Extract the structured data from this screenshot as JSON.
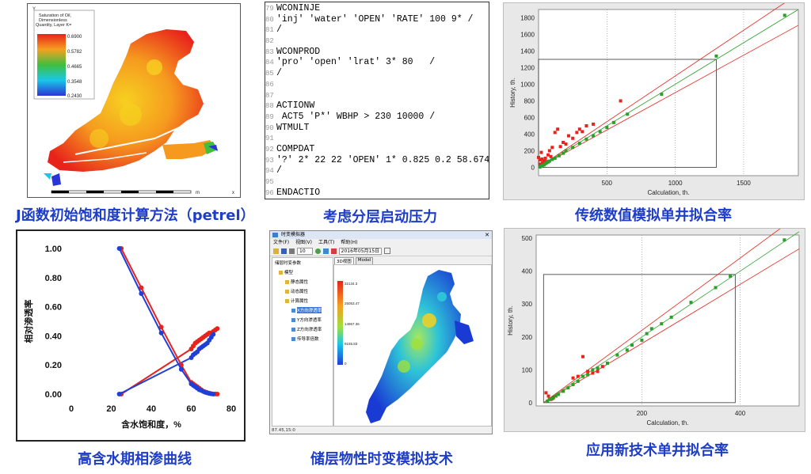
{
  "captions": {
    "p1": "J函数初始饱和度计算方法（petrel）",
    "p2": "考虑分层启动压力",
    "p3": "传统数值模拟单井拟合率",
    "p4": "高含水期相渗曲线",
    "p5": "储层物性时变模拟技术",
    "p6": "应用新技术单井拟合率"
  },
  "map1": {
    "legend_title_1": "Saturation of Oil,",
    "legend_title_2": "Dimensionless",
    "legend_title_3": "Quantity, Layer K=",
    "legend_values": [
      "0.6900",
      "0.5782",
      "0.4665",
      "0.3548",
      "0.2430"
    ],
    "scale_unit": "m",
    "axis_x": "x",
    "axis_y": "Y",
    "colors": {
      "high": "#e8231b",
      "mid": "#f59a1f",
      "low": "#2a35d6"
    }
  },
  "code": {
    "lines": [
      {
        "n": "79",
        "t": "WCONINJE"
      },
      {
        "n": "80",
        "t": "'inj' 'water' 'OPEN' 'RATE' 100 9* /"
      },
      {
        "n": "81",
        "t": "/"
      },
      {
        "n": "82",
        "t": ""
      },
      {
        "n": "83",
        "t": "WCONPROD"
      },
      {
        "n": "84",
        "t": "'pro' 'open' 'lrat' 3* 80   /"
      },
      {
        "n": "85",
        "t": "/"
      },
      {
        "n": "86",
        "t": ""
      },
      {
        "n": "87",
        "t": ""
      },
      {
        "n": "88",
        "t": "ACTIONW"
      },
      {
        "n": "89",
        "t": " ACT5 'P*' WBHP > 230 10000 /"
      },
      {
        "n": "90",
        "t": "WTMULT"
      },
      {
        "n": "91",
        "t": ""
      },
      {
        "n": "92",
        "t": "COMPDAT"
      },
      {
        "n": "93",
        "t": "'?' 2* 22 22 'OPEN' 1* 0.825 0.2 58.674 2* 'Z' 4.514 /"
      },
      {
        "n": "94",
        "t": "/"
      },
      {
        "n": "95",
        "t": ""
      },
      {
        "n": "96",
        "t": "ENDACTIO"
      }
    ]
  },
  "app": {
    "title": "时变模拟器",
    "menu": [
      "文件(F)",
      "视图(V)",
      "工具(T)",
      "帮助(H)"
    ],
    "zoom": "10",
    "date": "2016年05月15日",
    "tabs": [
      "3D视图",
      "Model"
    ],
    "tree_root": "储层时变参数",
    "tree_items": [
      "模型",
      "静态属性",
      "动态属性",
      "计算属性",
      "X方向渗透率",
      "Y方向渗透率",
      "Z方向渗透率",
      "传导率倍数"
    ],
    "legend_values": [
      "32134.3",
      "25053.47",
      "14967.36",
      "9155.83",
      "0"
    ],
    "status": "87.45,15:0"
  },
  "chart_data": [
    {
      "type": "line",
      "title": "",
      "xlabel": "含水饱和度，%",
      "ylabel": "相对渗透率",
      "xlim": [
        0,
        80
      ],
      "ylim": [
        0,
        1
      ],
      "xticks": [
        "0",
        "20",
        "40",
        "60",
        "80"
      ],
      "yticks": [
        "0.00",
        "0.20",
        "0.40",
        "0.60",
        "0.80",
        "1.00"
      ],
      "series": [
        {
          "color": "#e8231b",
          "kind": "krw",
          "x": [
            25,
            60,
            61,
            62,
            63,
            64,
            65,
            66,
            67,
            68,
            69,
            70,
            71,
            72,
            73
          ],
          "y": [
            0,
            0.31,
            0.33,
            0.35,
            0.36,
            0.37,
            0.38,
            0.39,
            0.4,
            0.41,
            0.42,
            0.42,
            0.43,
            0.44,
            0.45
          ]
        },
        {
          "color": "#1f3fd8",
          "kind": "krw",
          "x": [
            24,
            60,
            61,
            62,
            63,
            64,
            65,
            66,
            67,
            68,
            69,
            70,
            71
          ],
          "y": [
            0,
            0.25,
            0.27,
            0.28,
            0.29,
            0.31,
            0.32,
            0.33,
            0.34,
            0.35,
            0.37,
            0.39,
            0.41
          ]
        },
        {
          "color": "#e8231b",
          "kind": "kro",
          "x": [
            25,
            35,
            45,
            55,
            60,
            61,
            62,
            63,
            64,
            65,
            66,
            67,
            68,
            69,
            70,
            72,
            73
          ],
          "y": [
            1.0,
            0.73,
            0.46,
            0.2,
            0.08,
            0.07,
            0.06,
            0.05,
            0.04,
            0.03,
            0.02,
            0.015,
            0.01,
            0.006,
            0.003,
            0.001,
            0.0
          ]
        },
        {
          "color": "#1f3fd8",
          "kind": "kro",
          "x": [
            24,
            35,
            45,
            55,
            60,
            61,
            62,
            63,
            64,
            65,
            66,
            67,
            68,
            69,
            70,
            71
          ],
          "y": [
            1.0,
            0.69,
            0.42,
            0.17,
            0.07,
            0.06,
            0.05,
            0.04,
            0.03,
            0.025,
            0.018,
            0.012,
            0.008,
            0.004,
            0.002,
            0.0
          ]
        }
      ]
    },
    {
      "type": "scatter",
      "title": "",
      "xlabel": "Calculation, th.",
      "ylabel": "History, th.",
      "xlim": [
        0,
        1900
      ],
      "ylim": [
        -100,
        1900
      ],
      "xticks": [
        500,
        1000,
        1500
      ],
      "yticks": [
        0,
        200,
        400,
        600,
        800,
        1000,
        1200,
        1400,
        1600,
        1800
      ],
      "box": {
        "x": [
          0,
          1300
        ],
        "y": [
          0,
          1300
        ]
      },
      "series": [
        {
          "color": "#e8231b",
          "x": [
            0,
            10,
            20,
            30,
            15,
            25,
            40,
            50,
            60,
            70,
            80,
            90,
            100,
            120,
            140,
            160,
            180,
            200,
            220,
            250,
            280,
            300,
            320,
            350,
            400,
            600
          ],
          "y": [
            120,
            90,
            180,
            60,
            40,
            100,
            80,
            110,
            70,
            150,
            200,
            130,
            240,
            420,
            460,
            250,
            300,
            280,
            380,
            350,
            420,
            460,
            430,
            500,
            520,
            800
          ]
        },
        {
          "color": "#2aa02a",
          "x": [
            10,
            20,
            30,
            40,
            50,
            60,
            70,
            80,
            100,
            120,
            150,
            180,
            200,
            250,
            300,
            350,
            400,
            450,
            500,
            550,
            650,
            900,
            1300,
            1800
          ],
          "y": [
            5,
            15,
            25,
            30,
            45,
            55,
            65,
            75,
            95,
            110,
            140,
            170,
            200,
            240,
            290,
            340,
            380,
            430,
            480,
            540,
            640,
            880,
            1340,
            1830
          ]
        }
      ]
    },
    {
      "type": "scatter",
      "title": "",
      "xlabel": "Calculation, th.",
      "ylabel": "History, th.",
      "xlim": [
        -15,
        520
      ],
      "ylim": [
        -10,
        510
      ],
      "xticks": [
        200,
        400
      ],
      "yticks": [
        0,
        100,
        200,
        300,
        400,
        500
      ],
      "box": {
        "x": [
          0,
          390
        ],
        "y": [
          0,
          390
        ]
      },
      "series": [
        {
          "color": "#e8231b",
          "x": [
            5,
            10,
            15,
            20,
            40,
            60,
            70,
            80,
            90,
            100,
            110,
            120
          ],
          "y": [
            30,
            20,
            10,
            15,
            35,
            75,
            80,
            140,
            95,
            90,
            95,
            110
          ]
        },
        {
          "color": "#2aa02a",
          "x": [
            8,
            12,
            18,
            25,
            30,
            40,
            50,
            60,
            70,
            80,
            90,
            100,
            110,
            130,
            150,
            170,
            180,
            200,
            210,
            220,
            240,
            260,
            300,
            350,
            380,
            490
          ],
          "y": [
            5,
            10,
            12,
            20,
            25,
            35,
            45,
            55,
            65,
            80,
            85,
            100,
            105,
            120,
            145,
            160,
            175,
            190,
            210,
            225,
            240,
            260,
            305,
            350,
            385,
            495
          ]
        }
      ]
    }
  ]
}
